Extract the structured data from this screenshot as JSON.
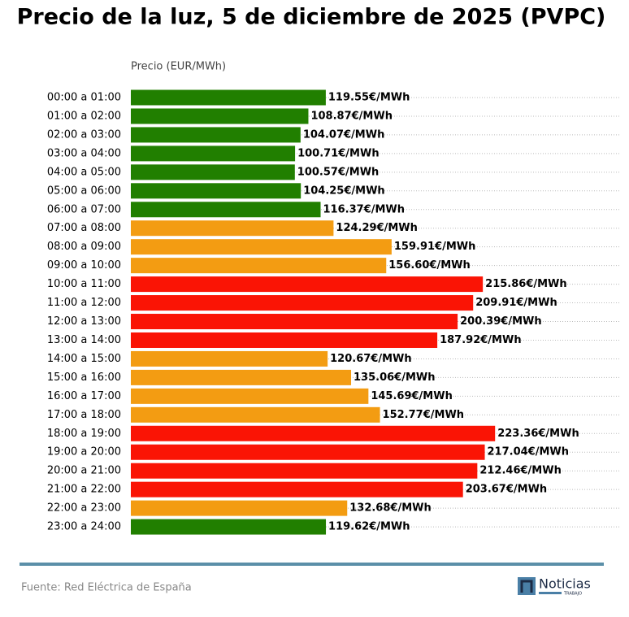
{
  "chart_data": {
    "type": "barh",
    "title": "Precio de la luz, 5 de diciembre de 2025 (PVPC)",
    "x_label": "Precio (EUR/MWh)",
    "categories": [
      "00:00 a 01:00",
      "01:00 a 02:00",
      "02:00 a 03:00",
      "03:00 a 04:00",
      "04:00 a 05:00",
      "05:00 a 06:00",
      "06:00 a 07:00",
      "07:00 a 08:00",
      "08:00 a 09:00",
      "09:00 a 10:00",
      "10:00 a 11:00",
      "11:00 a 12:00",
      "12:00 a 13:00",
      "13:00 a 14:00",
      "14:00 a 15:00",
      "15:00 a 16:00",
      "16:00 a 17:00",
      "17:00 a 18:00",
      "18:00 a 19:00",
      "19:00 a 20:00",
      "20:00 a 21:00",
      "21:00 a 22:00",
      "22:00 a 23:00",
      "23:00 a 24:00"
    ],
    "values": [
      119.55,
      108.87,
      104.07,
      100.71,
      100.57,
      104.25,
      116.37,
      124.29,
      159.91,
      156.6,
      215.86,
      209.91,
      200.39,
      187.92,
      120.67,
      135.06,
      145.69,
      152.77,
      223.36,
      217.04,
      212.46,
      203.67,
      132.68,
      119.62
    ],
    "value_labels": [
      "119.55€/MWh",
      "108.87€/MWh",
      "104.07€/MWh",
      "100.71€/MWh",
      "100.57€/MWh",
      "104.25€/MWh",
      "116.37€/MWh",
      "124.29€/MWh",
      "159.91€/MWh",
      "156.60€/MWh",
      "215.86€/MWh",
      "209.91€/MWh",
      "200.39€/MWh",
      "187.92€/MWh",
      "120.67€/MWh",
      "135.06€/MWh",
      "145.69€/MWh",
      "152.77€/MWh",
      "223.36€/MWh",
      "217.04€/MWh",
      "212.46€/MWh",
      "203.67€/MWh",
      "132.68€/MWh",
      "119.62€/MWh"
    ],
    "colors": [
      "#217f00",
      "#217f00",
      "#217f00",
      "#217f00",
      "#217f00",
      "#217f00",
      "#217f00",
      "#f39c12",
      "#f39c12",
      "#f39c12",
      "#fa1405",
      "#fa1405",
      "#fa1405",
      "#fa1405",
      "#f39c12",
      "#f39c12",
      "#f39c12",
      "#f39c12",
      "#fa1405",
      "#fa1405",
      "#fa1405",
      "#fa1405",
      "#f39c12",
      "#217f00"
    ],
    "xlim": [
      0,
      300
    ],
    "grid": true,
    "source": "Fuente: Red Eléctrica de España"
  },
  "logo": {
    "name": "Noticias",
    "sub": "TRABAJO"
  }
}
